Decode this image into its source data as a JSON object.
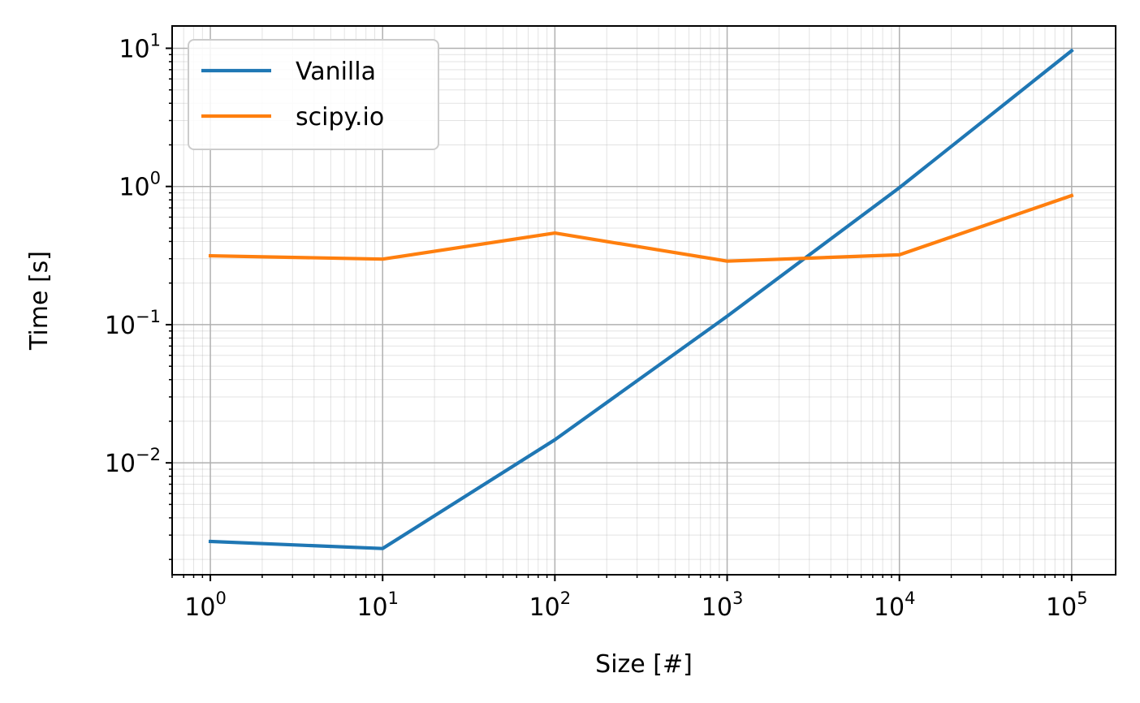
{
  "chart_data": {
    "type": "line",
    "xscale": "log",
    "yscale": "log",
    "xlabel": "Size [#]",
    "ylabel": "Time [s]",
    "xlim": [
      0.6,
      180000
    ],
    "ylim": [
      0.00155,
      14.5
    ],
    "grid": true,
    "grid_minor": true,
    "legend_position": "top-left",
    "xticks": [
      {
        "value": 1,
        "base": "10",
        "exp": "0"
      },
      {
        "value": 10,
        "base": "10",
        "exp": "1"
      },
      {
        "value": 100,
        "base": "10",
        "exp": "2"
      },
      {
        "value": 1000,
        "base": "10",
        "exp": "3"
      },
      {
        "value": 10000,
        "base": "10",
        "exp": "4"
      },
      {
        "value": 100000,
        "base": "10",
        "exp": "5"
      }
    ],
    "yticks": [
      {
        "value": 0.01,
        "base": "10",
        "exp": "−2"
      },
      {
        "value": 0.1,
        "base": "10",
        "exp": "−1"
      },
      {
        "value": 1,
        "base": "10",
        "exp": "0"
      },
      {
        "value": 10,
        "base": "10",
        "exp": "1"
      }
    ],
    "x": [
      1,
      10,
      100,
      1000,
      10000,
      100000
    ],
    "series": [
      {
        "name": "Vanilla",
        "color": "#1f77b4",
        "values": [
          0.0027,
          0.0024,
          0.0147,
          0.115,
          0.98,
          9.6
        ]
      },
      {
        "name": "scipy.io",
        "color": "#ff7f0e",
        "values": [
          0.315,
          0.298,
          0.46,
          0.288,
          0.32,
          0.86
        ]
      }
    ]
  }
}
